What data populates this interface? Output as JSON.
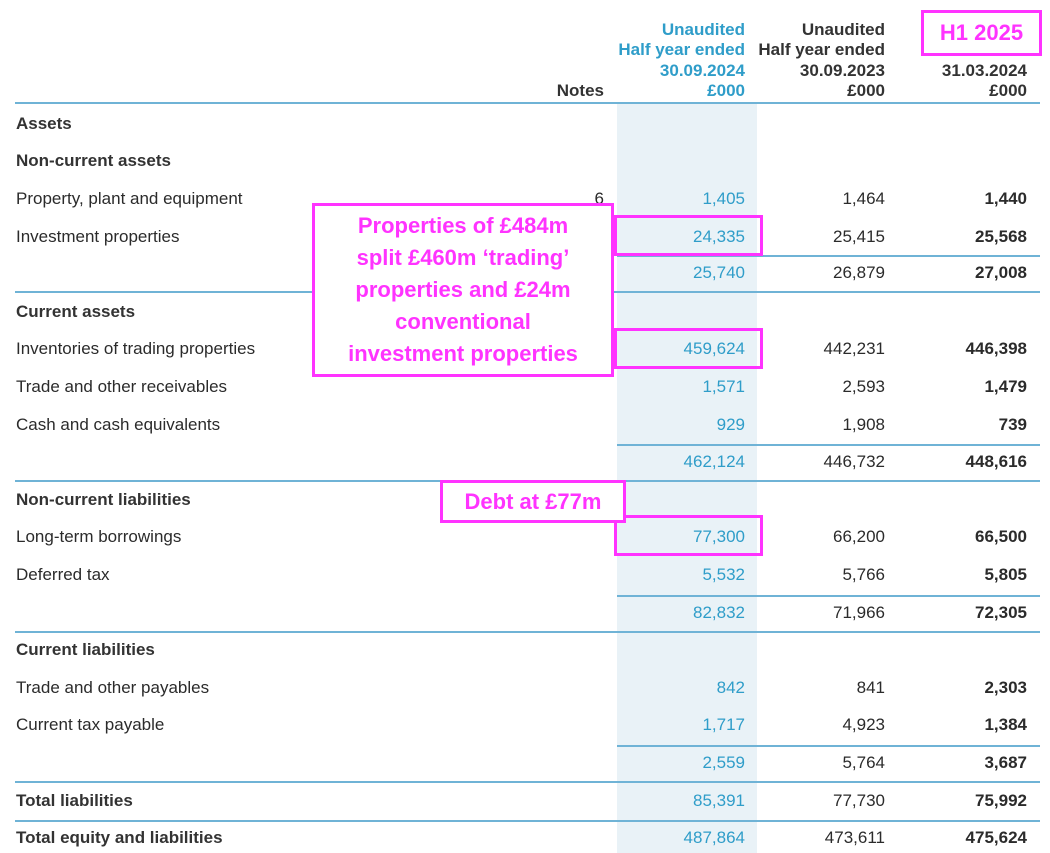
{
  "header": {
    "notes": "Notes",
    "columns": [
      [
        "Unaudited",
        "Half year ended",
        "30.09.2024",
        "£000"
      ],
      [
        "Unaudited",
        "Half year ended",
        "30.09.2023",
        "£000"
      ],
      [
        "31.03.2024",
        "£000"
      ]
    ]
  },
  "rows": [
    {
      "label": "Assets"
    },
    {
      "label": "Non-current assets"
    },
    {
      "label": "Property, plant and equipment",
      "note": "6",
      "values": [
        "1,405",
        "1,464",
        "1,440"
      ]
    },
    {
      "label": "Investment properties",
      "values": [
        "24,335",
        "25,415",
        "25,568"
      ]
    },
    {
      "values": [
        "25,740",
        "26,879",
        "27,008"
      ]
    },
    {
      "label": "Current assets"
    },
    {
      "label": "Inventories of trading properties",
      "values": [
        "459,624",
        "442,231",
        "446,398"
      ]
    },
    {
      "label": "Trade and other receivables",
      "values": [
        "1,571",
        "2,593",
        "1,479"
      ]
    },
    {
      "label": "Cash and cash equivalents",
      "values": [
        "929",
        "1,908",
        "739"
      ]
    },
    {
      "values": [
        "462,124",
        "446,732",
        "448,616"
      ]
    },
    {
      "label": "Non-current liabilities"
    },
    {
      "label": "Long-term borrowings",
      "values": [
        "77,300",
        "66,200",
        "66,500"
      ]
    },
    {
      "label": "Deferred tax",
      "values": [
        "5,532",
        "5,766",
        "5,805"
      ]
    },
    {
      "values": [
        "82,832",
        "71,966",
        "72,305"
      ]
    },
    {
      "label": "Current liabilities"
    },
    {
      "label": "Trade and other payables",
      "values": [
        "842",
        "841",
        "2,303"
      ]
    },
    {
      "label": "Current tax payable",
      "values": [
        "1,717",
        "4,923",
        "1,384"
      ]
    },
    {
      "values": [
        "2,559",
        "5,764",
        "3,687"
      ]
    },
    {
      "label": "Total liabilities",
      "values": [
        "85,391",
        "77,730",
        "75,992"
      ]
    },
    {
      "label": "Total equity and liabilities",
      "values": [
        "487,864",
        "473,611",
        "475,624"
      ]
    }
  ],
  "annotations": [
    [
      "H1 2025"
    ],
    [
      "Properties of £484m",
      "split £460m ‘trading’",
      "properties and £24m",
      "conventional",
      "investment properties"
    ],
    [
      "Debt at £77m"
    ]
  ]
}
